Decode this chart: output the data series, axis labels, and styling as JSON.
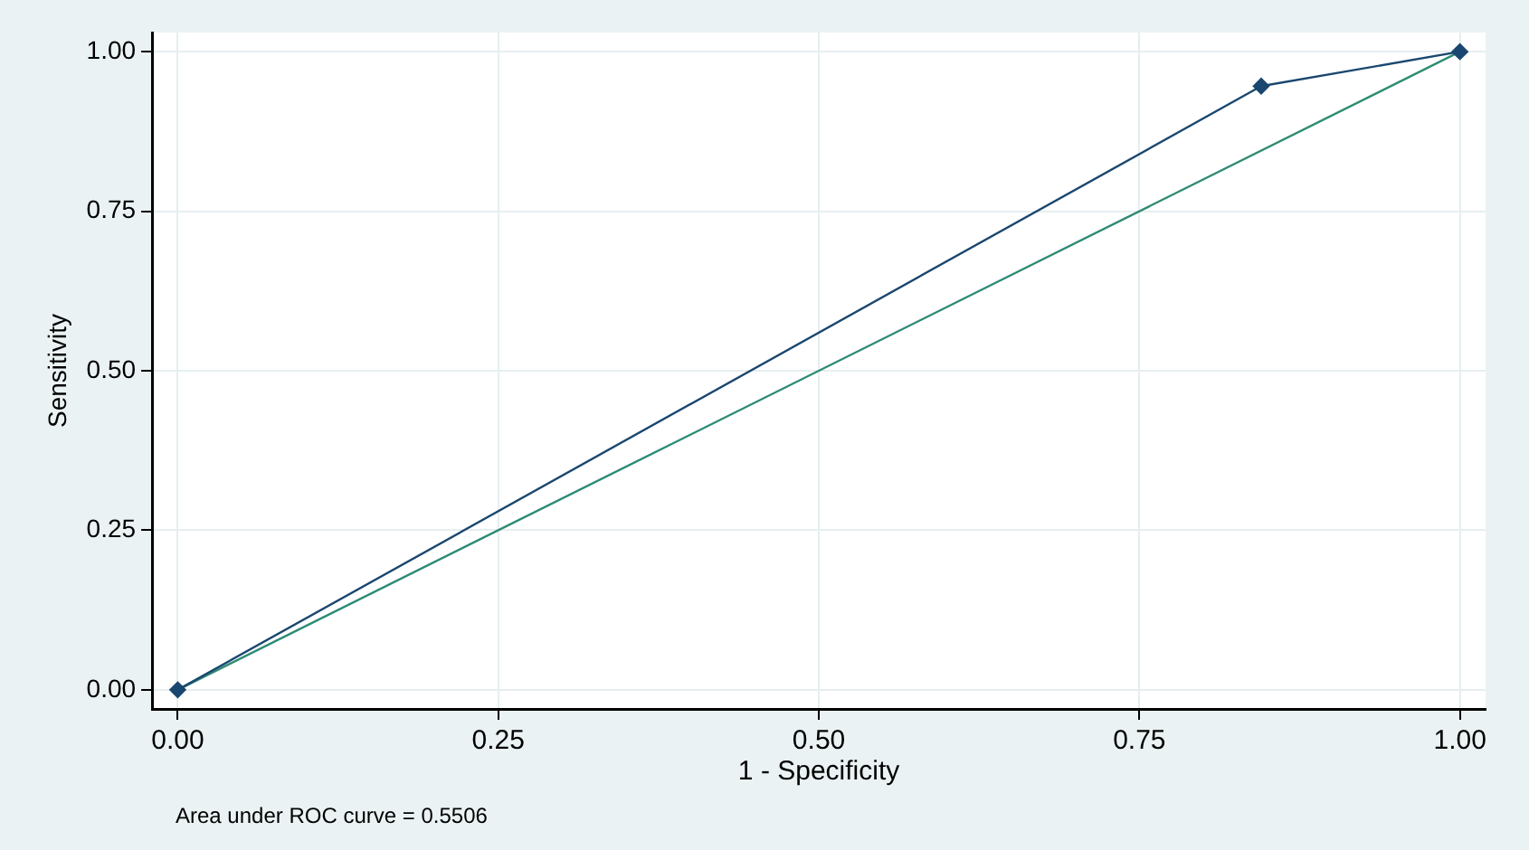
{
  "chart_data": {
    "type": "line",
    "xlabel": "1 - Specificity",
    "ylabel": "Sensitivity",
    "series": [
      {
        "color": "#1a476f",
        "marker": "diamond",
        "x": [
          0,
          0.845,
          1
        ],
        "values": [
          0,
          0.946,
          1
        ]
      },
      {
        "color": "#2e8b74",
        "marker": "none",
        "x": [
          0,
          1
        ],
        "values": [
          0,
          1
        ]
      }
    ],
    "xlim": [
      -0.02,
      1.02
    ],
    "ylim": [
      -0.03,
      1.03
    ],
    "xticks": [
      {
        "value": 0,
        "label": "0.00"
      },
      {
        "value": 0.25,
        "label": "0.25"
      },
      {
        "value": 0.5,
        "label": "0.50"
      },
      {
        "value": 0.75,
        "label": "0.75"
      },
      {
        "value": 1,
        "label": "1.00"
      }
    ],
    "yticks": [
      {
        "value": 0,
        "label": "0.00"
      },
      {
        "value": 0.25,
        "label": "0.25"
      },
      {
        "value": 0.5,
        "label": "0.50"
      },
      {
        "value": 0.75,
        "label": "0.75"
      },
      {
        "value": 1,
        "label": "1.00"
      }
    ],
    "grid": true,
    "legend": false,
    "annotations": [
      "Area under ROC curve = 0.5506"
    ]
  }
}
